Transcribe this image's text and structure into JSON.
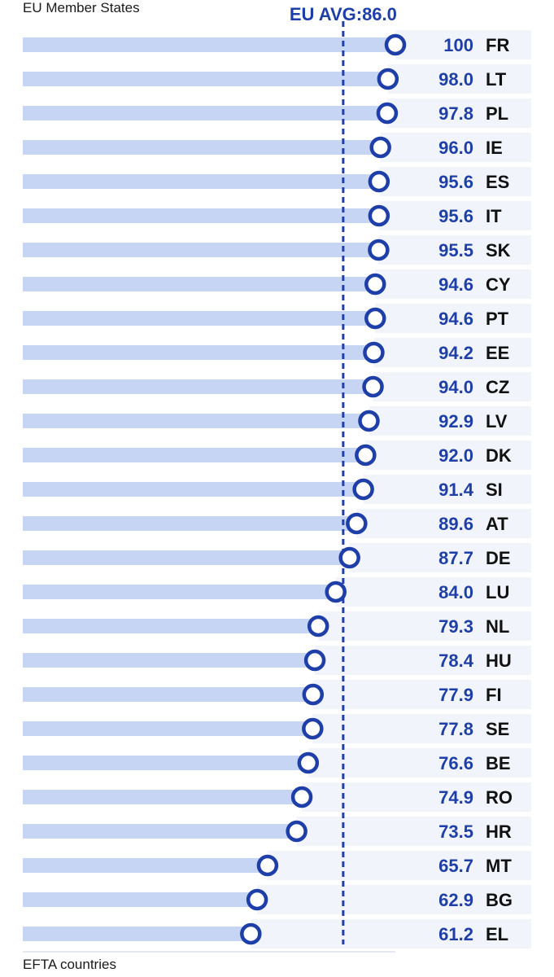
{
  "header": {
    "section_title": "EU Member States"
  },
  "footer": {
    "section_title": "EFTA countries"
  },
  "chart_data": {
    "type": "bar",
    "title": "",
    "xlabel": "",
    "ylabel": "",
    "xlim": [
      0,
      100
    ],
    "reference_line": {
      "label": "EU AVG:86.0",
      "value": 86.0
    },
    "categories": [
      "FR",
      "LT",
      "PL",
      "IE",
      "ES",
      "IT",
      "SK",
      "CY",
      "PT",
      "EE",
      "CZ",
      "LV",
      "DK",
      "SI",
      "AT",
      "DE",
      "LU",
      "NL",
      "HU",
      "FI",
      "SE",
      "BE",
      "RO",
      "HR",
      "MT",
      "BG",
      "EL"
    ],
    "values": [
      100,
      98.0,
      97.8,
      96.0,
      95.6,
      95.6,
      95.5,
      94.6,
      94.6,
      94.2,
      94.0,
      92.9,
      92.0,
      91.4,
      89.6,
      87.7,
      84.0,
      79.3,
      78.4,
      77.9,
      77.8,
      76.6,
      74.9,
      73.5,
      65.7,
      62.9,
      61.2
    ],
    "value_labels": [
      "100",
      "98.0",
      "97.8",
      "96.0",
      "95.6",
      "95.6",
      "95.5",
      "94.6",
      "94.6",
      "94.2",
      "94.0",
      "92.9",
      "92.0",
      "91.4",
      "89.6",
      "87.7",
      "84.0",
      "79.3",
      "78.4",
      "77.9",
      "77.8",
      "76.6",
      "74.9",
      "73.5",
      "65.7",
      "62.9",
      "61.2"
    ],
    "colors": {
      "bar": "#c7d5f5",
      "row_bg": "#f1f4fb",
      "marker": "#1f3fa8",
      "avg_line": "#1f3fa8"
    }
  }
}
